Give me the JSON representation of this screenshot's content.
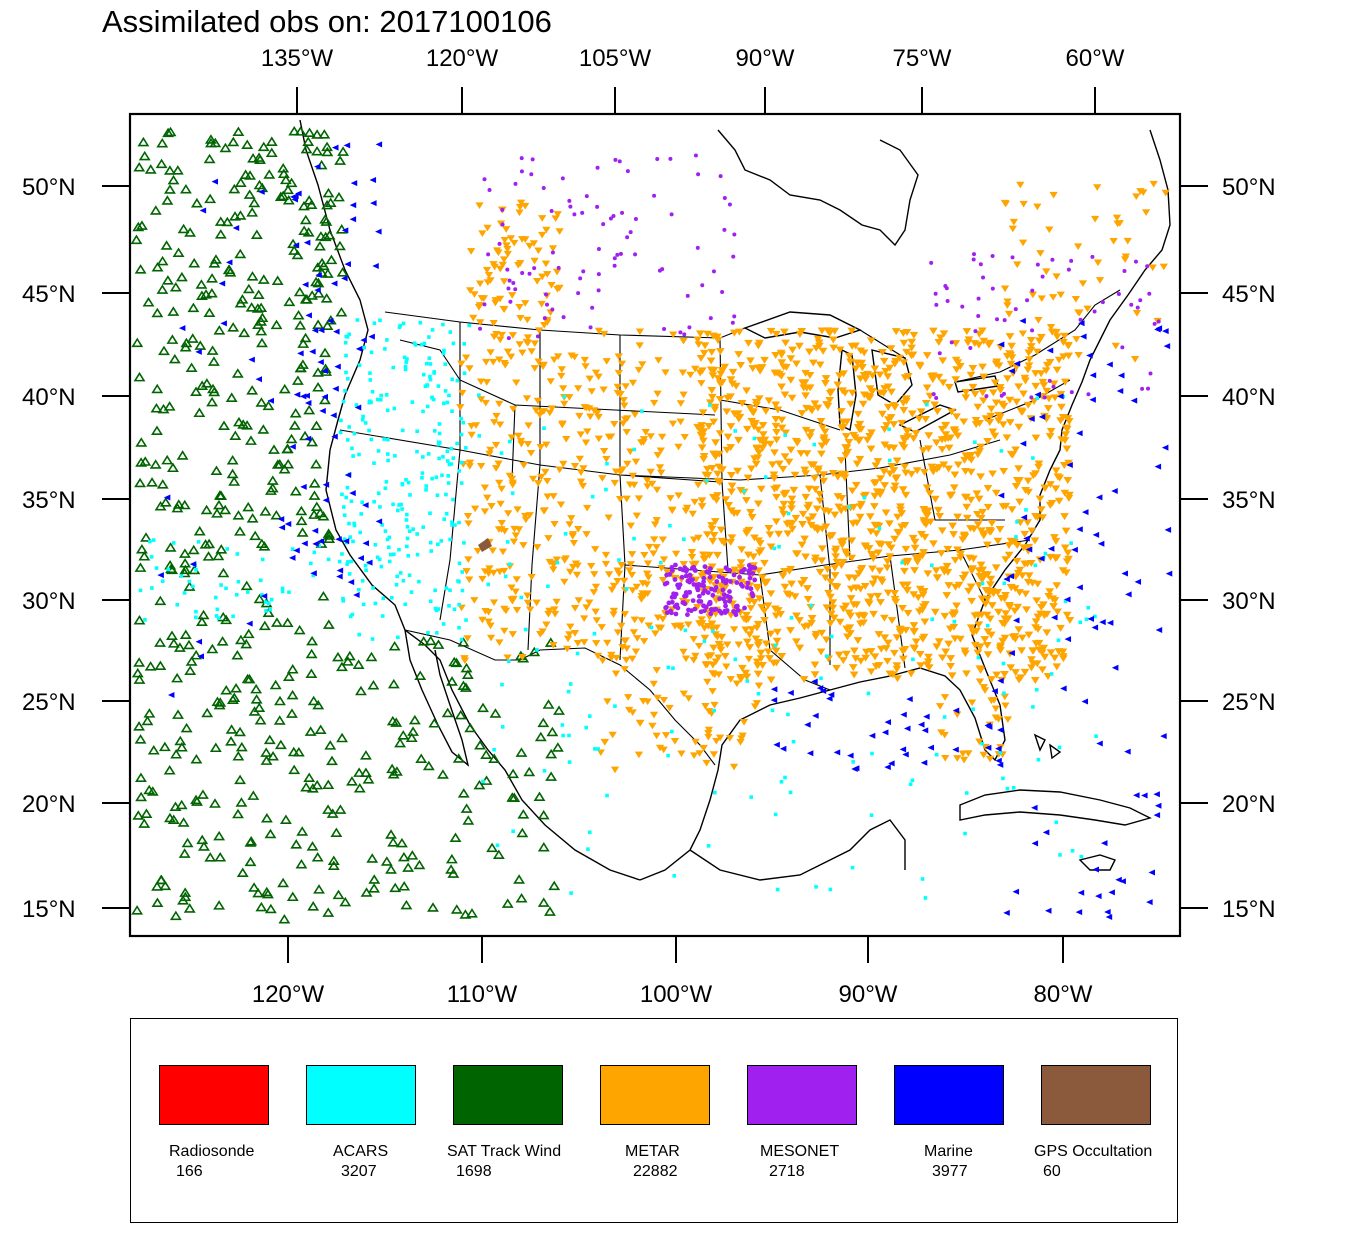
{
  "title": "Assimilated obs on: 2017100106",
  "map": {
    "projection": "Lambert conformal (CONUS)",
    "top_axis_labels": [
      "135°W",
      "120°W",
      "105°W",
      "90°W",
      "75°W",
      "60°W"
    ],
    "bottom_axis_labels": [
      "120°W",
      "110°W",
      "100°W",
      "90°W",
      "80°W"
    ],
    "left_axis_labels": [
      "50°N",
      "45°N",
      "40°N",
      "35°N",
      "30°N",
      "25°N",
      "20°N",
      "15°N"
    ],
    "right_axis_labels": [
      "50°N",
      "45°N",
      "40°N",
      "35°N",
      "30°N",
      "25°N",
      "20°N",
      "15°N"
    ]
  },
  "legend": [
    {
      "label": "Radiosonde",
      "count": "166",
      "color": "#ff0000"
    },
    {
      "label": "ACARS",
      "count": "3207",
      "color": "#00ffff"
    },
    {
      "label": "SAT Track Wind",
      "count": "1698",
      "color": "#006400"
    },
    {
      "label": "METAR",
      "count": "22882",
      "color": "#ffa500"
    },
    {
      "label": "MESONET",
      "count": "2718",
      "color": "#a020f0"
    },
    {
      "label": "Marine",
      "count": "3977",
      "color": "#0000ff"
    },
    {
      "label": "GPS Occultation",
      "count": "60",
      "color": "#8b5a3c"
    }
  ]
}
